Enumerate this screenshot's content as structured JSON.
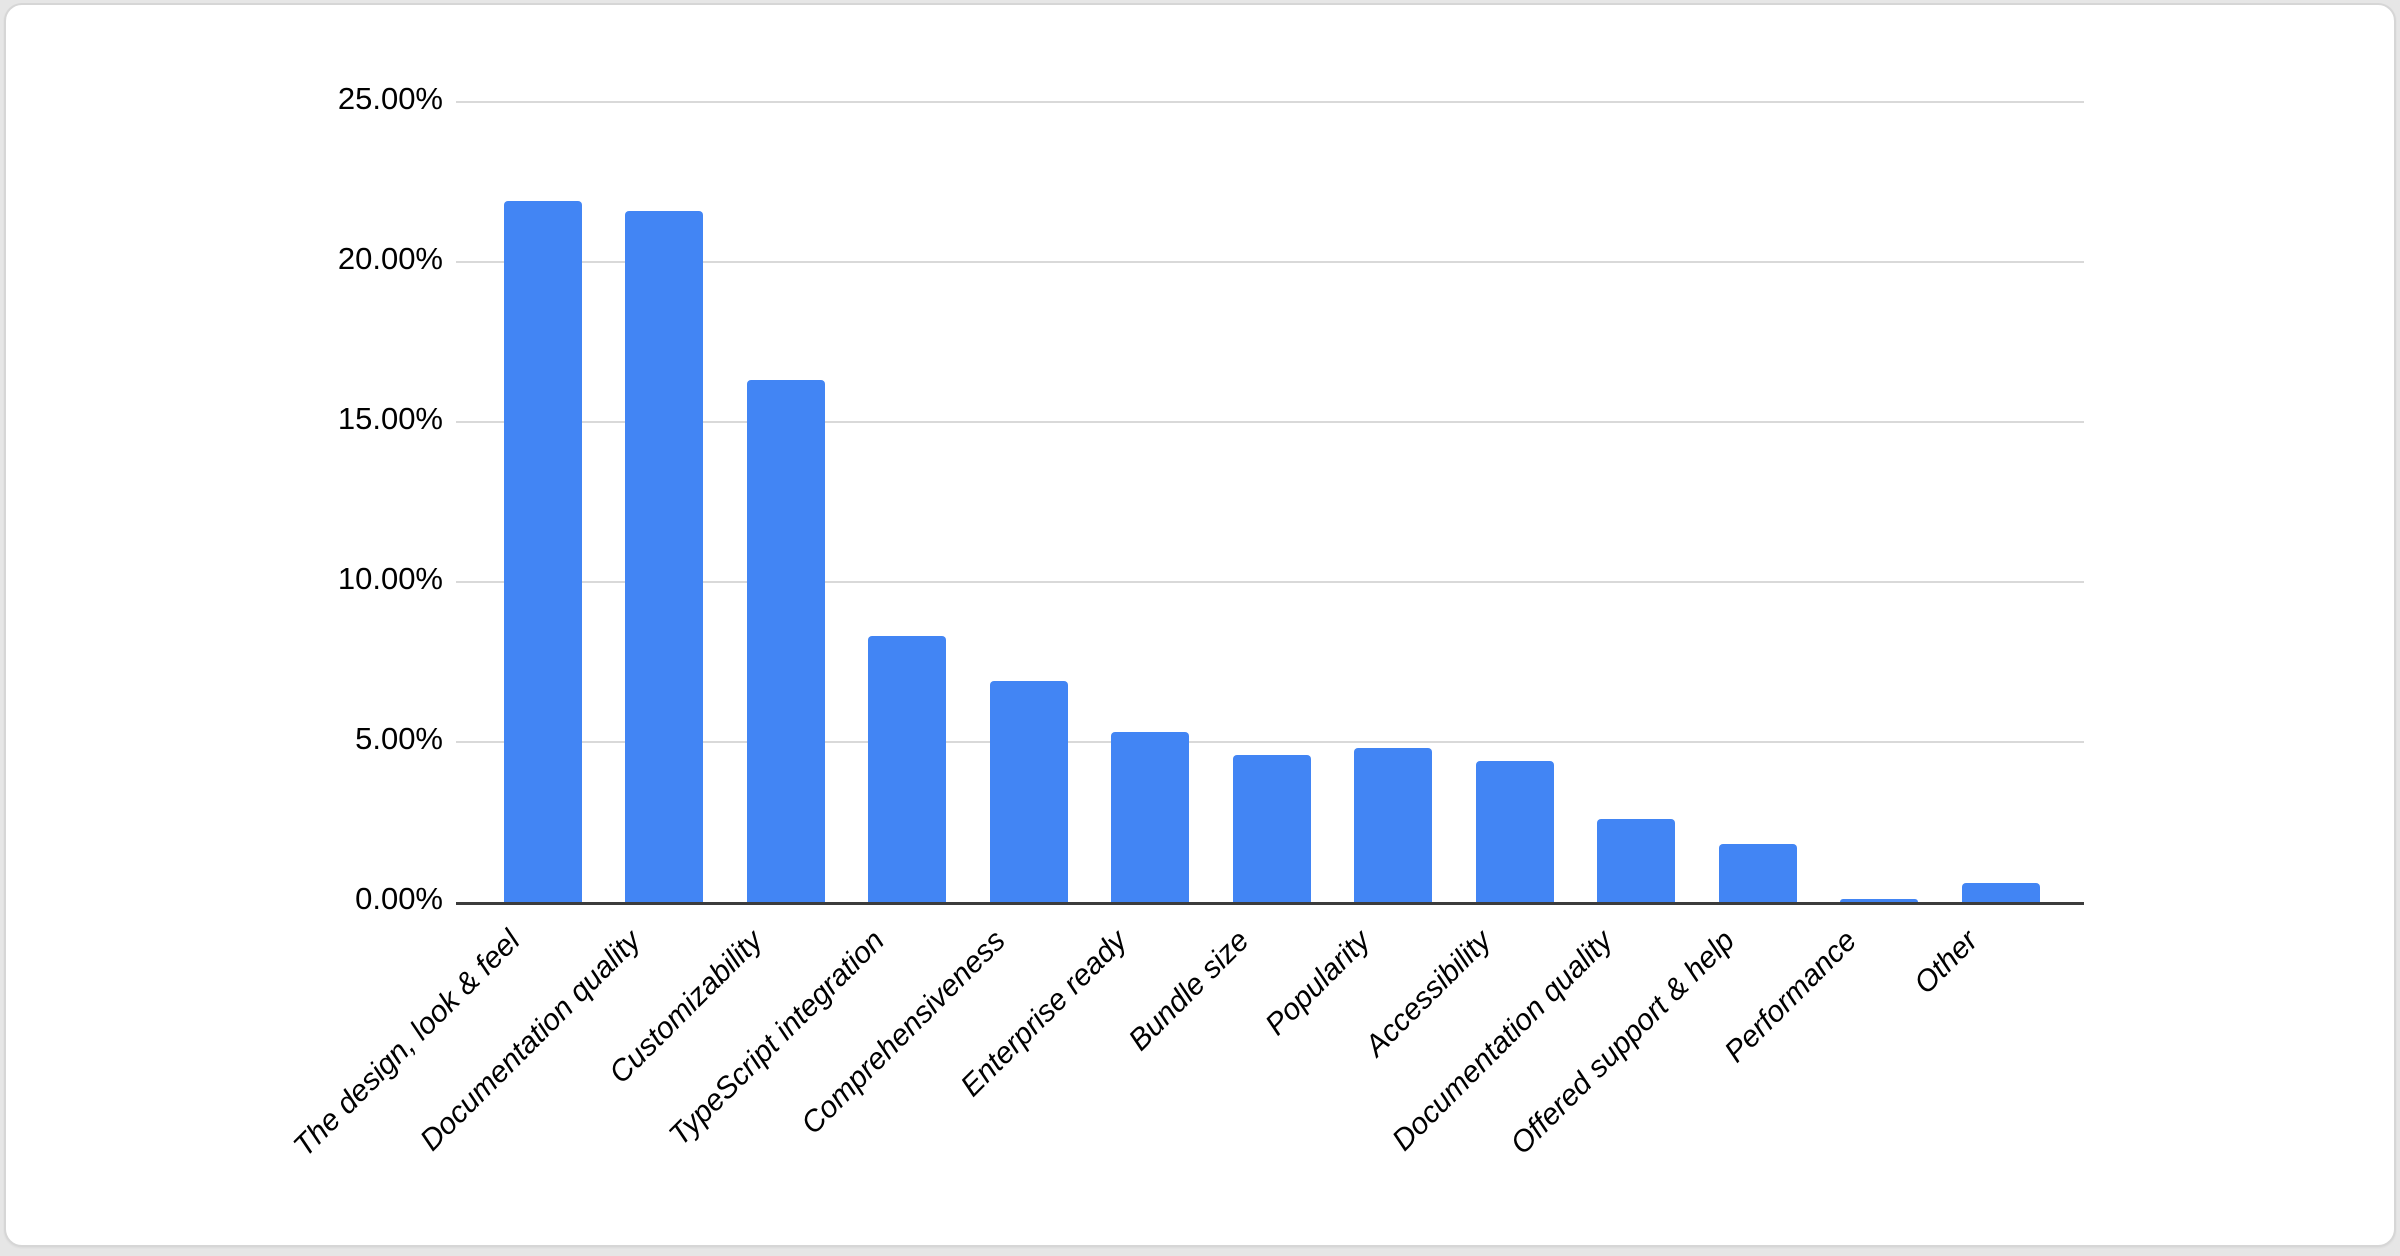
{
  "page": {
    "background_color": "#e6e6e6",
    "card_background": "#ffffff",
    "card_border_color": "#d6d6d6"
  },
  "chart_data": {
    "type": "bar",
    "title": "",
    "xlabel": "",
    "ylabel": "",
    "categories": [
      "The design, look & feel",
      "Documentation quality",
      "Customizability",
      "TypeScript integration",
      "Comprehensiveness",
      "Enterprise ready",
      "Bundle size",
      "Popularity",
      "Accessibility",
      "Documentation quality",
      "Offered support & help",
      "Performance",
      "Other"
    ],
    "values": [
      21.9,
      21.6,
      16.3,
      8.3,
      6.9,
      5.3,
      4.6,
      4.8,
      4.4,
      2.6,
      1.8,
      0.1,
      0.6
    ],
    "value_unit": "%",
    "ylim": [
      0,
      25
    ],
    "ytick_interval": 5,
    "ytick_labels": [
      "25.00%",
      "20.00%",
      "15.00%",
      "10.00%",
      "5.00%",
      "0.00%"
    ],
    "grid": true,
    "legend_position": "none",
    "bar_color": "#4285f4",
    "gridline_color": "#d9d9d9",
    "axis_line_color": "#3c3c3c",
    "label_color": "#000000"
  }
}
